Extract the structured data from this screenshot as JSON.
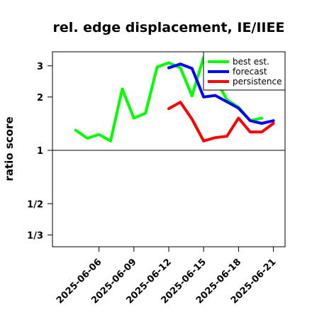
{
  "chart_data": {
    "type": "line",
    "title": "rel. edge displacement, IE/IIEE",
    "xlabel": "",
    "ylabel": "ratio score",
    "y_scale": "log",
    "ylim": [
      0.2857,
      3.6
    ],
    "y_ticks": [
      {
        "value": 3,
        "label": "3"
      },
      {
        "value": 2,
        "label": "2"
      },
      {
        "value": 1,
        "label": "1"
      },
      {
        "value": 0.5,
        "label": "1/2"
      },
      {
        "value": 0.3333,
        "label": "1/3"
      }
    ],
    "xlim": [
      "2025-06-02",
      "2025-06-22"
    ],
    "x_ticks": [
      {
        "date": "2025-06-06",
        "label": "2025-06-06",
        "color": "#000000"
      },
      {
        "date": "2025-06-09",
        "label": "2025-06-09",
        "color": "#000000"
      },
      {
        "date": "2025-06-12",
        "label": "2025-06-12",
        "color": "#228B22"
      },
      {
        "date": "2025-06-15",
        "label": "2025-06-15",
        "color": "#000000"
      },
      {
        "date": "2025-06-18",
        "label": "2025-06-18",
        "color": "#000000"
      },
      {
        "date": "2025-06-21",
        "label": "2025-06-21",
        "color": "#000000"
      }
    ],
    "reference_line": 1,
    "grid": false,
    "legend_position": "top-right",
    "series": [
      {
        "name": "best est.",
        "color": "#00FF00",
        "x": [
          "2025-06-04",
          "2025-06-05",
          "2025-06-06",
          "2025-06-07",
          "2025-06-08",
          "2025-06-09",
          "2025-06-10",
          "2025-06-11",
          "2025-06-12",
          "2025-06-13",
          "2025-06-14",
          "2025-06-15",
          "2025-06-16",
          "2025-06-17",
          "2025-06-18",
          "2025-06-19",
          "2025-06-20",
          "2025-06-21"
        ],
        "values": [
          1.3,
          1.17,
          1.23,
          1.13,
          2.22,
          1.52,
          1.62,
          2.95,
          3.12,
          2.92,
          2.03,
          3.35,
          2.55,
          1.93,
          1.75,
          1.47,
          1.52,
          null
        ]
      },
      {
        "name": "forecast",
        "color": "#0000FF",
        "x": [
          "2025-06-12",
          "2025-06-13",
          "2025-06-14",
          "2025-06-15",
          "2025-06-16",
          "2025-06-17",
          "2025-06-18",
          "2025-06-19",
          "2025-06-20",
          "2025-06-21"
        ],
        "values": [
          2.92,
          3.07,
          2.9,
          2.0,
          2.04,
          1.88,
          1.73,
          1.47,
          1.42,
          1.47
        ]
      },
      {
        "name": "persistence",
        "color": "#FF0000",
        "x": [
          "2025-06-12",
          "2025-06-13",
          "2025-06-14",
          "2025-06-15",
          "2025-06-16",
          "2025-06-17",
          "2025-06-18",
          "2025-06-19",
          "2025-06-20",
          "2025-06-21"
        ],
        "values": [
          1.72,
          1.87,
          1.5,
          1.13,
          1.18,
          1.2,
          1.52,
          1.27,
          1.27,
          1.42
        ]
      }
    ]
  }
}
